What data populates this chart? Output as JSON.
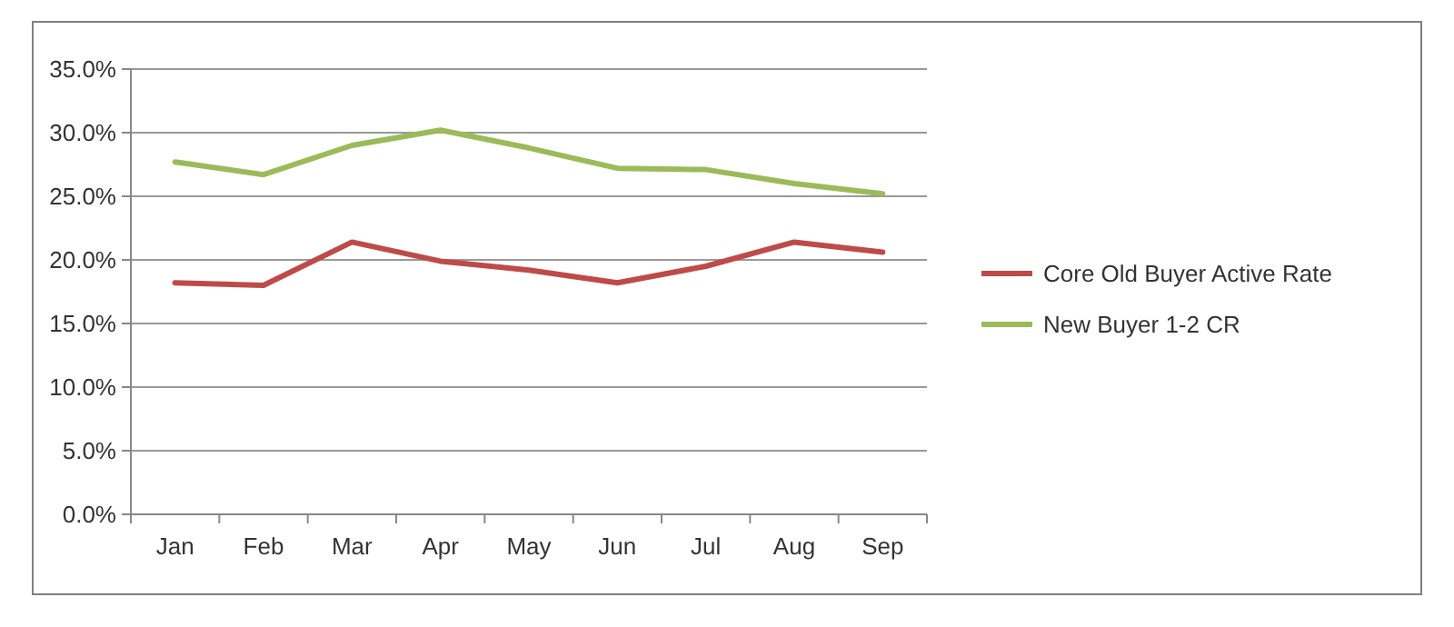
{
  "chart_data": {
    "type": "line",
    "categories": [
      "Jan",
      "Feb",
      "Mar",
      "Apr",
      "May",
      "Jun",
      "Jul",
      "Aug",
      "Sep"
    ],
    "series": [
      {
        "name": "Core Old Buyer Active Rate",
        "color": "#be4b48",
        "values": [
          18.2,
          18.0,
          21.4,
          19.9,
          19.2,
          18.2,
          19.5,
          21.4,
          20.6
        ]
      },
      {
        "name": "New Buyer 1-2 CR",
        "color": "#9bbb59",
        "values": [
          27.7,
          26.7,
          29.0,
          30.2,
          28.8,
          27.2,
          27.1,
          26.0,
          25.2
        ]
      }
    ],
    "ylim": [
      0,
      35
    ],
    "yticks": [
      {
        "value": 0,
        "label": "0.0%"
      },
      {
        "value": 5,
        "label": "5.0%"
      },
      {
        "value": 10,
        "label": "10.0%"
      },
      {
        "value": 15,
        "label": "15.0%"
      },
      {
        "value": 20,
        "label": "20.0%"
      },
      {
        "value": 25,
        "label": "25.0%"
      },
      {
        "value": 30,
        "label": "30.0%"
      },
      {
        "value": 35,
        "label": "35.0%"
      }
    ],
    "grid": "y",
    "legend": "right",
    "marker": "none",
    "line_style": "solid"
  }
}
